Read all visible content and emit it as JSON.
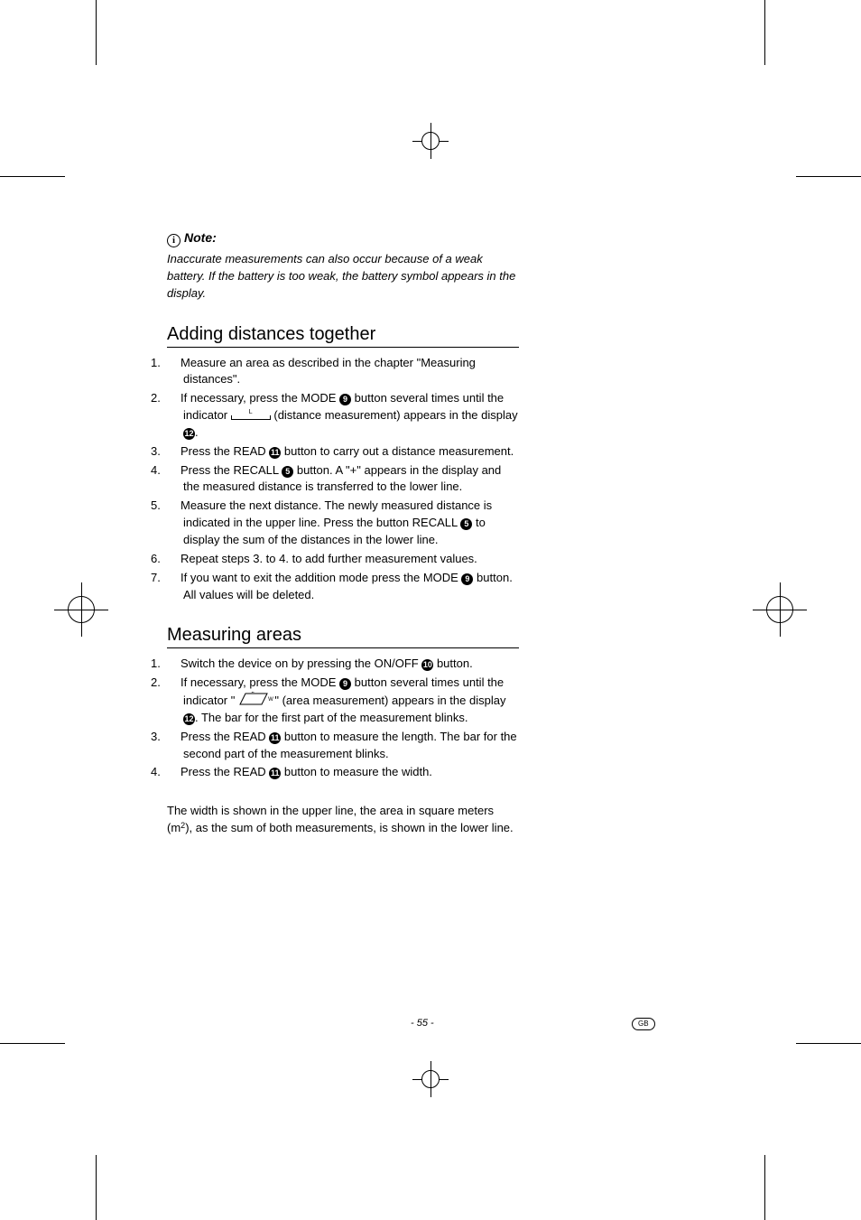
{
  "note": {
    "icon_title": "Note:",
    "body": "Inaccurate measurements can also occur because of a weak battery. If the battery is too weak, the battery symbol appears in the display."
  },
  "section1": {
    "title": "Adding distances together",
    "items": [
      {
        "n": "1.",
        "pre": "Measure an area as described in the chapter \"Measuring distances\"."
      },
      {
        "n": "2.",
        "pre": "If necessary, press the MODE ",
        "c1": "9",
        "mid1": " button several times until the indicator ",
        "icon": "dist",
        "icon_lbl": "L",
        "mid2": " (distance measurement) appears in the display ",
        "c2": "12",
        "post": "."
      },
      {
        "n": "3.",
        "pre": "Press the READ ",
        "c1": "11",
        "mid1": " button to carry out a distance measurement."
      },
      {
        "n": "4.",
        "pre": "Press the RECALL ",
        "c1": "5",
        "mid1": " button. A \"+\" appears in the display and the measured distance is transferred to the lower line."
      },
      {
        "n": "5.",
        "pre": "Measure the next distance. The newly measured distance is indicated in the upper line. Press the button RECALL ",
        "c1": "5",
        "mid1": " to display the sum of the distances in the lower line."
      },
      {
        "n": "6.",
        "pre": "Repeat steps 3. to 4. to add further measurement values."
      },
      {
        "n": "7.",
        "pre": "If you want to exit the addition mode press the MODE ",
        "c1": "9",
        "mid1": " button. All values will be deleted."
      }
    ]
  },
  "section2": {
    "title": "Measuring areas",
    "items": [
      {
        "n": "1.",
        "pre": "Switch the device on by pressing the ON/OFF ",
        "c1": "10",
        "mid1": " button."
      },
      {
        "n": "2.",
        "pre": "If necessary, press the MODE ",
        "c1": "9",
        "mid1": " button several times until the indicator \"",
        "icon": "area",
        "icon_lbl_top": "L",
        "icon_lbl_side": "W",
        "mid2": "\" (area measurement) appears in the display ",
        "c2": "12",
        "post": ". The bar for the first part of the measurement blinks."
      },
      {
        "n": "3.",
        "pre": "Press the READ ",
        "c1": "11",
        "mid1": " button to measure the length. The bar for the second part of the measurement blinks."
      },
      {
        "n": "4.",
        "pre": "Press the READ ",
        "c1": "11",
        "mid1": " button to measure the width."
      }
    ],
    "trailing_pre": "The width is shown in the upper line, the area in square meters (m",
    "trailing_sup": "2",
    "trailing_post": "), as the sum of both measurements, is shown in the lower line."
  },
  "footer": {
    "page": "- 55 -",
    "lang": "GB"
  }
}
